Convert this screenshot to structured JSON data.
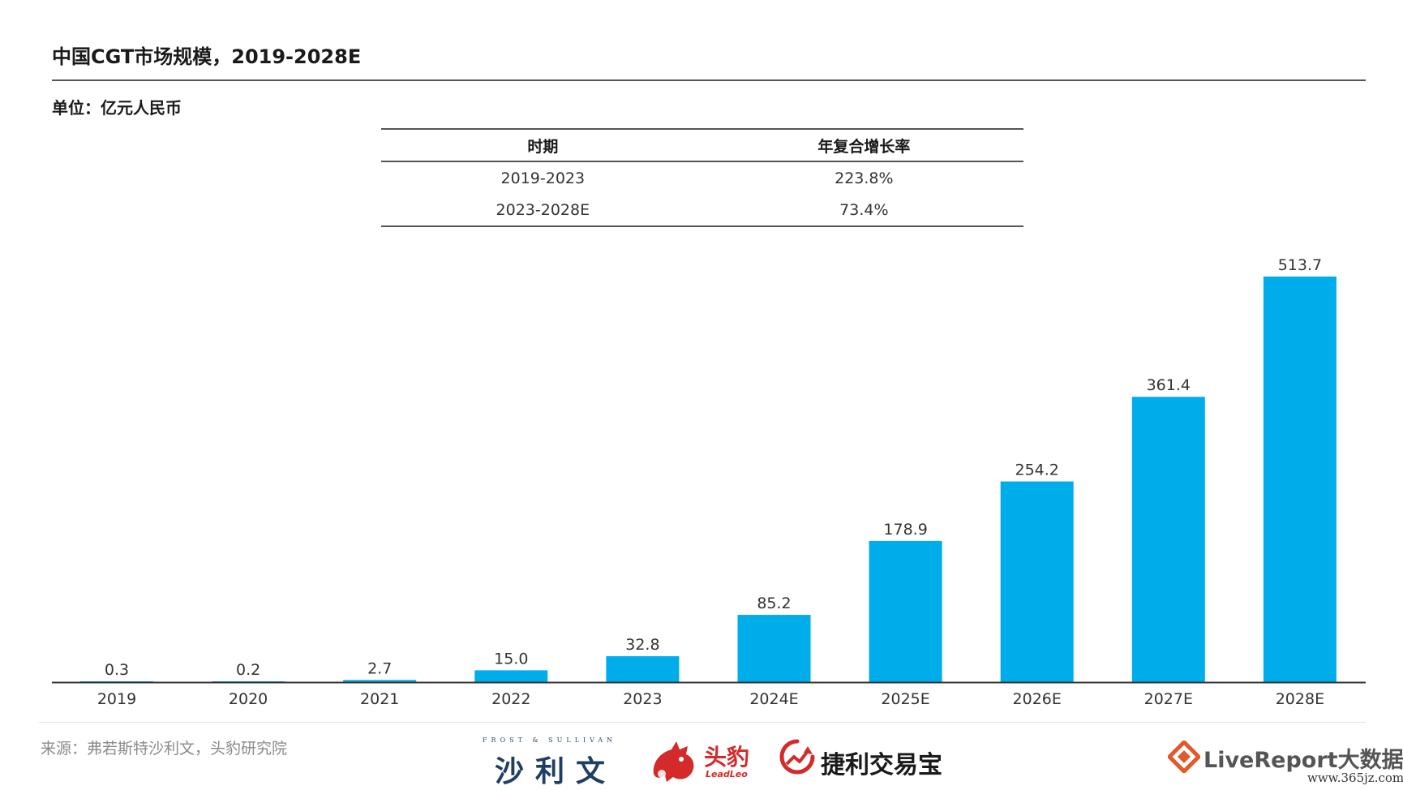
{
  "header": {
    "title": "中国CGT市场规模，2019-2028E",
    "unit": "单位：亿元人民币"
  },
  "cagr_table": {
    "headers": [
      "时期",
      "年复合增长率"
    ],
    "rows": [
      [
        "2019-2023",
        "223.8%"
      ],
      [
        "2023-2028E",
        "73.4%"
      ]
    ]
  },
  "chart_data": {
    "type": "bar",
    "title": "中国CGT市场规模，2019-2028E",
    "ylabel": "",
    "xlabel": "",
    "categories": [
      "2019",
      "2020",
      "2021",
      "2022",
      "2023",
      "2024E",
      "2025E",
      "2026E",
      "2027E",
      "2028E"
    ],
    "values": [
      0.3,
      0.2,
      2.7,
      15.0,
      32.8,
      85.2,
      178.9,
      254.2,
      361.4,
      513.7
    ],
    "value_labels": [
      "0.3",
      "0.2",
      "2.7",
      "15.0",
      "32.8",
      "85.2",
      "178.9",
      "254.2",
      "361.4",
      "513.7"
    ],
    "ylim": [
      0,
      513.7
    ],
    "grid": false,
    "bar_color": "#00adeb"
  },
  "footer": {
    "source": "来源：弗若斯特沙利文，头豹研究院",
    "logos": {
      "frost_english": "FROST & SULLIVAN",
      "frost_chinese": "沙利文",
      "leadleo_chinese": "头豹",
      "leadleo_english": "LeadLeo",
      "jieli": "捷利交易宝",
      "livereport": "LiveReport大数据"
    },
    "watermark": "www.365jz.com"
  }
}
